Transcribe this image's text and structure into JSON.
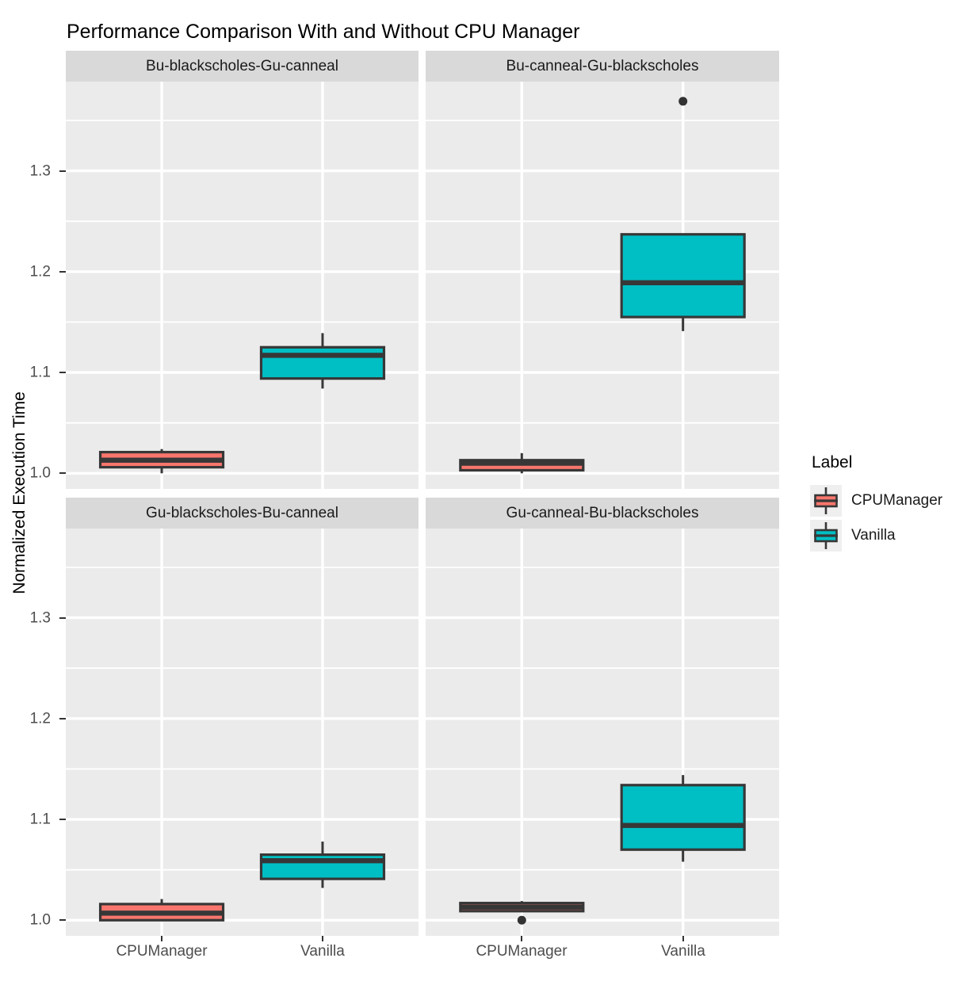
{
  "chart_data": {
    "type": "boxplot",
    "title": "Performance Comparison With and Without CPU Manager",
    "ylabel": "Normalized Execution Time",
    "xlabel": "",
    "legend_title": "Label",
    "legend_position": "right",
    "grid": true,
    "x_categories": [
      "CPUManager",
      "Vanilla"
    ],
    "y_ticks": [
      1.0,
      1.1,
      1.2,
      1.3
    ],
    "y_tick_labels": [
      "1.0",
      "1.1",
      "1.2",
      "1.3"
    ],
    "y_minor_ticks": [
      1.05,
      1.15,
      1.25,
      1.35
    ],
    "y_domain": [
      0.9845,
      1.3885
    ],
    "series": [
      {
        "name": "CPUManager",
        "color": "#F8766D"
      },
      {
        "name": "Vanilla",
        "color": "#00BFC4"
      }
    ],
    "facets": [
      {
        "label": "Bu-blackscholes-Gu-canneal",
        "boxes": [
          {
            "group": "CPUManager",
            "lower_whisker": 1.0,
            "q1": 1.006,
            "median": 1.013,
            "q3": 1.021,
            "upper_whisker": 1.024,
            "outliers": []
          },
          {
            "group": "Vanilla",
            "lower_whisker": 1.084,
            "q1": 1.094,
            "median": 1.117,
            "q3": 1.125,
            "upper_whisker": 1.139,
            "outliers": []
          }
        ]
      },
      {
        "label": "Bu-canneal-Gu-blackscholes",
        "boxes": [
          {
            "group": "CPUManager",
            "lower_whisker": 1.0,
            "q1": 1.003,
            "median": 1.01,
            "q3": 1.013,
            "upper_whisker": 1.02,
            "outliers": []
          },
          {
            "group": "Vanilla",
            "lower_whisker": 1.141,
            "q1": 1.155,
            "median": 1.189,
            "q3": 1.237,
            "upper_whisker": 1.237,
            "outliers": [
              1.369
            ]
          }
        ]
      },
      {
        "label": "Gu-blackscholes-Bu-canneal",
        "boxes": [
          {
            "group": "CPUManager",
            "lower_whisker": 0.999,
            "q1": 1.0,
            "median": 1.007,
            "q3": 1.016,
            "upper_whisker": 1.021,
            "outliers": []
          },
          {
            "group": "Vanilla",
            "lower_whisker": 1.032,
            "q1": 1.041,
            "median": 1.059,
            "q3": 1.065,
            "upper_whisker": 1.078,
            "outliers": []
          }
        ]
      },
      {
        "label": "Gu-canneal-Bu-blackscholes",
        "boxes": [
          {
            "group": "CPUManager",
            "lower_whisker": 1.009,
            "q1": 1.009,
            "median": 1.013,
            "q3": 1.017,
            "upper_whisker": 1.019,
            "outliers": [
              1.0
            ]
          },
          {
            "group": "Vanilla",
            "lower_whisker": 1.058,
            "q1": 1.07,
            "median": 1.094,
            "q3": 1.134,
            "upper_whisker": 1.144,
            "outliers": []
          }
        ]
      }
    ],
    "colors": {
      "panel_background": "#EBEBEB",
      "strip_background": "#D9D9D9",
      "gridline": "#FFFFFF",
      "box_border": "#373737",
      "outlier": "#333333",
      "tick_label": "#4D4D4D"
    }
  }
}
